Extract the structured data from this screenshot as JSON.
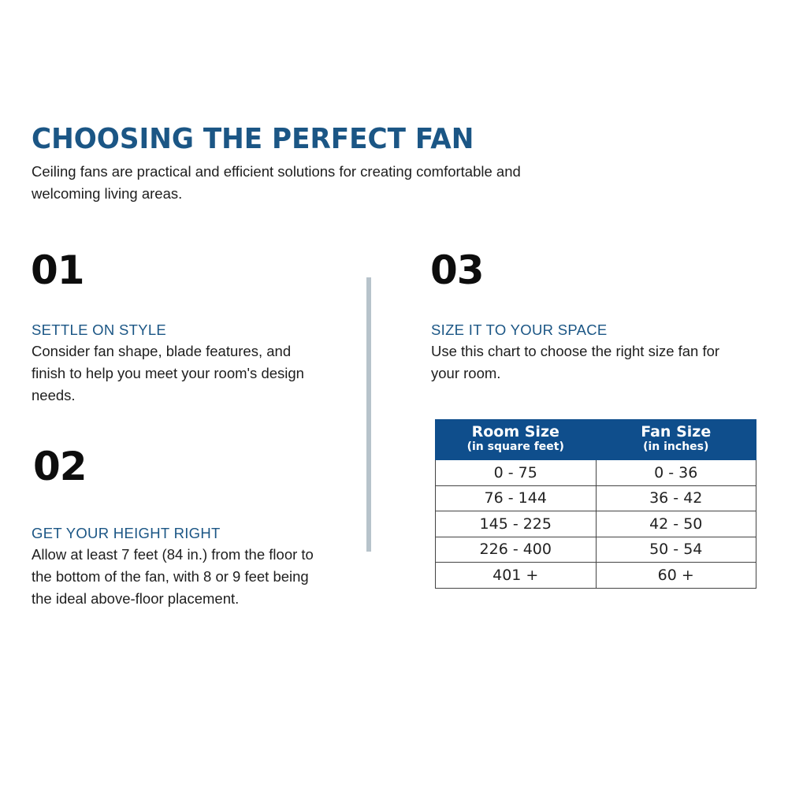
{
  "title": "CHOOSING THE PERFECT FAN",
  "intro": "Ceiling fans are practical and efficient solutions for creating comfortable and welcoming living areas.",
  "colors": {
    "accent": "#1b5685",
    "table_header": "#0f4e8c",
    "divider": "#b7c3cb"
  },
  "steps": [
    {
      "number": "01",
      "heading": "SETTLE ON STYLE",
      "text": "Consider fan shape, blade features, and finish to help you meet your room's design needs."
    },
    {
      "number": "02",
      "heading": "GET YOUR HEIGHT RIGHT",
      "text": "Allow at least 7 feet (84 in.) from the floor to the bottom of the fan, with 8 or 9 feet being the ideal above-floor placement."
    },
    {
      "number": "03",
      "heading": "SIZE IT TO YOUR SPACE",
      "text": "Use this chart to choose the right size fan for your room."
    }
  ],
  "table": {
    "headers": [
      {
        "main": "Room Size",
        "sub": "(in square feet)"
      },
      {
        "main": "Fan Size",
        "sub": "(in inches)"
      }
    ],
    "rows": [
      [
        "0 - 75",
        "0 - 36"
      ],
      [
        "76 - 144",
        "36 - 42"
      ],
      [
        "145 - 225",
        "42 - 50"
      ],
      [
        "226 - 400",
        "50 - 54"
      ],
      [
        "401 +",
        "60 +"
      ]
    ]
  }
}
